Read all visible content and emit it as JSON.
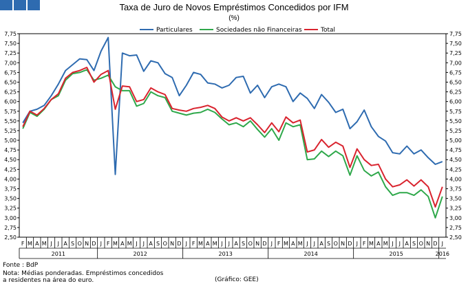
{
  "header": {
    "squares": 3,
    "square_color": "#2e6bb0"
  },
  "chart_data": {
    "type": "line",
    "title": "Taxa de Juro de Novos Empréstimos Concedidos por IFM",
    "subtitle": "(%)",
    "ylim": [
      2.5,
      7.75
    ],
    "yticks": [
      "7,75",
      "7,50",
      "7,25",
      "7,00",
      "6,75",
      "6,50",
      "6,25",
      "6,00",
      "5,75",
      "5,50",
      "5,25",
      "5,00",
      "4,75",
      "4,50",
      "4,25",
      "4,00",
      "3,75",
      "3,50",
      "3,25",
      "3,00",
      "2,75",
      "2,50"
    ],
    "months": [
      "F",
      "M",
      "A",
      "M",
      "J",
      "J",
      "A",
      "S",
      "O",
      "N",
      "D",
      "J",
      "F",
      "M",
      "A",
      "M",
      "J",
      "J",
      "A",
      "S",
      "O",
      "N",
      "D",
      "J",
      "F",
      "M",
      "A",
      "M",
      "J",
      "J",
      "A",
      "S",
      "O",
      "N",
      "D",
      "J",
      "F",
      "M",
      "A",
      "M",
      "J",
      "J",
      "A",
      "S",
      "O",
      "N",
      "D",
      "J",
      "F",
      "M",
      "A",
      "M",
      "J",
      "J",
      "A",
      "S",
      "O",
      "N",
      "D",
      "J"
    ],
    "years": [
      {
        "label": "2011",
        "start": 0,
        "count": 11
      },
      {
        "label": "2012",
        "start": 11,
        "count": 12
      },
      {
        "label": "2013",
        "start": 23,
        "count": 12
      },
      {
        "label": "2014",
        "start": 35,
        "count": 12
      },
      {
        "label": "2015",
        "start": 47,
        "count": 12
      },
      {
        "label": "2016",
        "start": 59,
        "count": 1
      }
    ],
    "series": [
      {
        "name": "Particulares",
        "color": "#2e6bb0",
        "values": [
          5.45,
          5.75,
          5.8,
          5.9,
          6.15,
          6.45,
          6.8,
          6.95,
          7.1,
          7.08,
          6.8,
          7.3,
          7.65,
          4.12,
          7.25,
          7.18,
          7.2,
          6.78,
          7.05,
          7.0,
          6.72,
          6.62,
          6.15,
          6.42,
          6.75,
          6.7,
          6.48,
          6.45,
          6.35,
          6.42,
          6.62,
          6.65,
          6.22,
          6.42,
          6.1,
          6.38,
          6.45,
          6.38,
          6.0,
          6.22,
          6.08,
          5.82,
          6.18,
          5.98,
          5.72,
          5.8,
          5.3,
          5.48,
          5.78,
          5.35,
          5.1,
          4.98,
          4.68,
          4.65,
          4.85,
          4.65,
          4.75,
          4.55,
          4.38,
          4.45
        ]
      },
      {
        "name": "Sociedades não Financeiras",
        "color": "#2ea84a",
        "values": [
          5.3,
          5.72,
          5.62,
          5.8,
          6.05,
          6.15,
          6.55,
          6.72,
          6.75,
          6.82,
          6.55,
          6.6,
          6.68,
          6.38,
          6.28,
          6.28,
          5.88,
          5.95,
          6.25,
          6.15,
          6.1,
          5.75,
          5.7,
          5.65,
          5.7,
          5.72,
          5.8,
          5.72,
          5.55,
          5.4,
          5.45,
          5.35,
          5.5,
          5.28,
          5.08,
          5.3,
          5.0,
          5.45,
          5.35,
          5.4,
          4.5,
          4.52,
          4.72,
          4.58,
          4.72,
          4.6,
          4.1,
          4.6,
          4.22,
          4.08,
          4.18,
          3.8,
          3.58,
          3.65,
          3.65,
          3.58,
          3.72,
          3.55,
          3.0,
          3.55
        ]
      },
      {
        "name": "Total",
        "color": "#d9232e",
        "values": [
          5.35,
          5.75,
          5.65,
          5.82,
          6.05,
          6.2,
          6.6,
          6.75,
          6.8,
          6.88,
          6.5,
          6.7,
          6.8,
          5.8,
          6.4,
          6.38,
          6.0,
          6.05,
          6.35,
          6.25,
          6.18,
          5.82,
          5.78,
          5.75,
          5.82,
          5.85,
          5.9,
          5.82,
          5.6,
          5.5,
          5.58,
          5.5,
          5.58,
          5.4,
          5.2,
          5.45,
          5.22,
          5.6,
          5.45,
          5.52,
          4.7,
          4.75,
          5.02,
          4.82,
          4.95,
          4.85,
          4.3,
          4.78,
          4.5,
          4.35,
          4.38,
          4.0,
          3.8,
          3.85,
          3.98,
          3.82,
          3.98,
          3.8,
          3.28,
          3.8
        ]
      }
    ]
  },
  "footer": {
    "source": "Fonte : BdP",
    "note_line1": "Nota: Médias ponderadas. Empréstimos concedidos",
    "note_line2": "a residentes na área do euro.",
    "credit": "(Gráfico: GEE)"
  }
}
